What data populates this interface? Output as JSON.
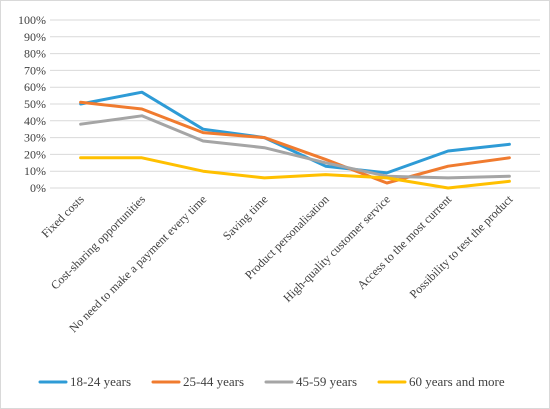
{
  "chart_data": {
    "type": "line",
    "categories": [
      "Fixed costs",
      "Cost-sharing opportunities",
      "No need to make a payment every time",
      "Saving time",
      "Product personalisation",
      "High-quality customer service",
      "Access to the most current",
      "Possibility to test the product"
    ],
    "y_ticks": [
      "0%",
      "10%",
      "20%",
      "30%",
      "40%",
      "50%",
      "60%",
      "70%",
      "80%",
      "90%",
      "100%"
    ],
    "ylim": [
      0,
      100
    ],
    "grid": "horizontal",
    "legend_position": "bottom",
    "series": [
      {
        "name": "18-24 years",
        "color": "#2e9bd6",
        "values": [
          50,
          57,
          35,
          30,
          13,
          9,
          22,
          26
        ]
      },
      {
        "name": "25-44 years",
        "color": "#f07b2f",
        "values": [
          51,
          47,
          33,
          30,
          17,
          3,
          13,
          18
        ]
      },
      {
        "name": "45-59 years",
        "color": "#a5a5a5",
        "values": [
          38,
          43,
          28,
          24,
          15,
          7,
          6,
          7
        ]
      },
      {
        "name": "60 years and more",
        "color": "#ffc000",
        "values": [
          18,
          18,
          10,
          6,
          8,
          6,
          0,
          4
        ]
      }
    ]
  }
}
